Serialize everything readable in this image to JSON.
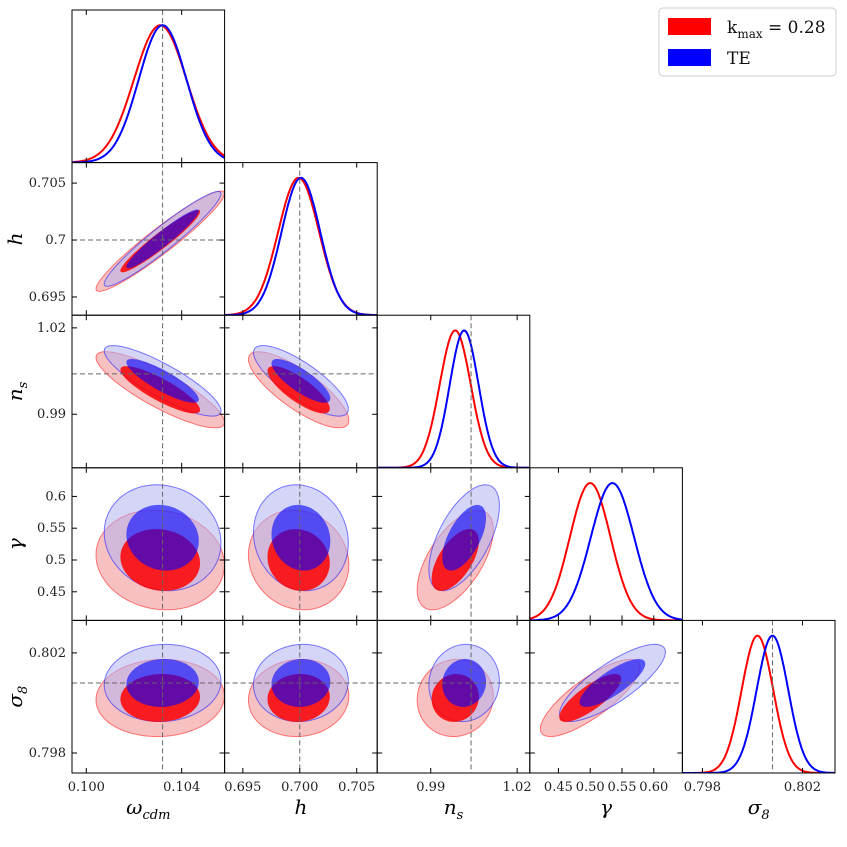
{
  "chart_data": {
    "type": "triangle-corner-plot",
    "parameters": [
      {
        "key": "wcdm",
        "label": "ω_cdm",
        "sub": "cdm",
        "base": "ω",
        "range": [
          0.0994,
          0.1058
        ],
        "ticks": [
          0.1,
          0.104
        ],
        "tick_labels": [
          "0.100",
          "0.104"
        ],
        "fiducial": 0.1032
      },
      {
        "key": "h",
        "label": "h",
        "sub": "",
        "base": "h",
        "range": [
          0.6934,
          0.7068
        ],
        "ticks": [
          0.695,
          0.7,
          0.705
        ],
        "tick_labels": [
          "0.695",
          "0.700",
          "0.705"
        ],
        "y_tick_labels": [
          "0.695",
          "0.7",
          "0.705"
        ],
        "fiducial": 0.7
      },
      {
        "key": "ns",
        "label": "n_s",
        "sub": "s",
        "base": "n",
        "range": [
          0.9714,
          1.0244
        ],
        "ticks": [
          0.99,
          1.02
        ],
        "tick_labels": [
          "0.99",
          "1.02"
        ],
        "fiducial": 1.004
      },
      {
        "key": "gamma",
        "label": "γ",
        "sub": "",
        "base": "γ",
        "range": [
          0.405,
          0.645
        ],
        "ticks": [
          0.45,
          0.5,
          0.55,
          0.6
        ],
        "tick_labels": [
          "0.45",
          "0.50",
          "0.55",
          "0.60"
        ],
        "y_tick_labels": [
          "0.45",
          "0.5",
          "0.55",
          "0.6"
        ],
        "fiducial": null
      },
      {
        "key": "s8",
        "label": "σ_8",
        "sub": "8",
        "base": "σ",
        "range": [
          0.7972,
          0.8033
        ],
        "ticks": [
          0.798,
          0.802
        ],
        "tick_labels": [
          "0.798",
          "0.802"
        ],
        "fiducial": 0.8008
      }
    ],
    "series": [
      {
        "name": "k_max = 0.28",
        "legend_base": "k",
        "legend_sub": "max",
        "legend_rest": " = 0.28",
        "color": "#ff0000",
        "fill_color": "#f4a0a0",
        "means": {
          "wcdm": 0.1031,
          "h": 0.6999,
          "ns": 0.9985,
          "gamma": 0.5,
          "s8": 0.8002
        },
        "sigmas": {
          "wcdm": 0.0011,
          "h": 0.0018,
          "ns": 0.0054,
          "gamma": 0.032,
          "s8": 0.00063
        },
        "correlations": [
          [
            "wcdm",
            "h",
            0.95
          ],
          [
            "wcdm",
            "ns",
            -0.85
          ],
          [
            "h",
            "ns",
            -0.8
          ],
          [
            "wcdm",
            "gamma",
            -0.1
          ],
          [
            "h",
            "gamma",
            -0.1
          ],
          [
            "ns",
            "gamma",
            0.6
          ],
          [
            "wcdm",
            "s8",
            0.05
          ],
          [
            "h",
            "s8",
            0.05
          ],
          [
            "ns",
            "s8",
            0.05
          ],
          [
            "gamma",
            "s8",
            0.8
          ]
        ]
      },
      {
        "name": "TE",
        "legend_base": "TE",
        "legend_sub": "",
        "legend_rest": "",
        "color": "#0000ff",
        "fill_color": "#b3b3f2",
        "means": {
          "wcdm": 0.1032,
          "h": 0.7001,
          "ns": 1.0016,
          "gamma": 0.535,
          "s8": 0.8008
        },
        "sigmas": {
          "wcdm": 0.001,
          "h": 0.0017,
          "ns": 0.005,
          "gamma": 0.034,
          "s8": 0.00063
        },
        "correlations": [
          [
            "wcdm",
            "h",
            0.95
          ],
          [
            "wcdm",
            "ns",
            -0.85
          ],
          [
            "h",
            "ns",
            -0.8
          ],
          [
            "wcdm",
            "gamma",
            -0.1
          ],
          [
            "h",
            "gamma",
            -0.1
          ],
          [
            "ns",
            "gamma",
            0.6
          ],
          [
            "wcdm",
            "s8",
            0.05
          ],
          [
            "h",
            "s8",
            0.05
          ],
          [
            "ns",
            "s8",
            0.05
          ],
          [
            "gamma",
            "s8",
            0.8
          ]
        ]
      }
    ],
    "contour_levels": [
      "68%",
      "95%"
    ],
    "legend_position": "top-right"
  }
}
